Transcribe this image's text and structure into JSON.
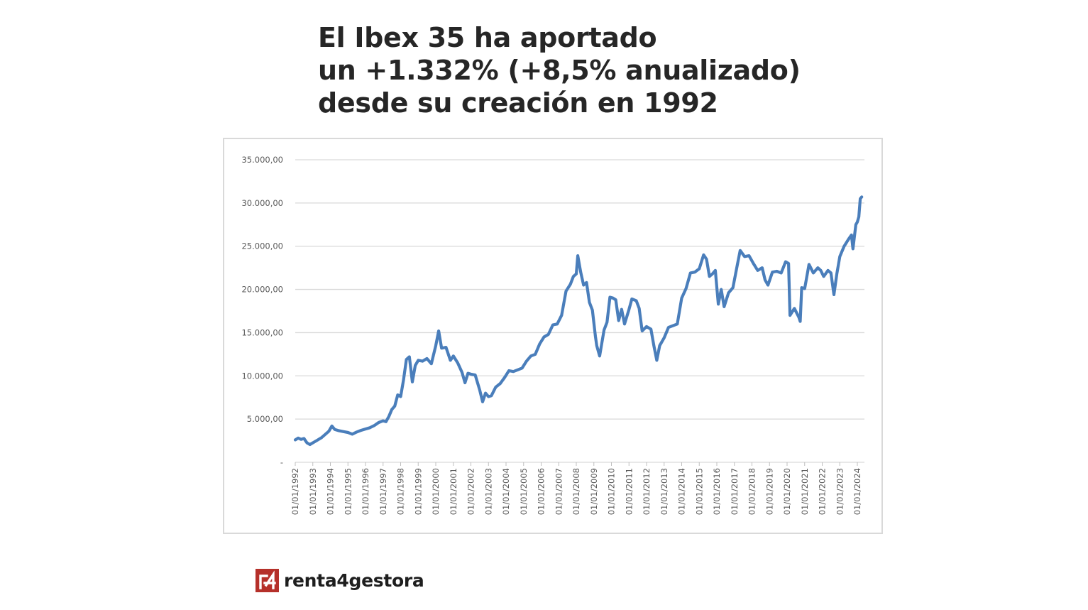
{
  "title": {
    "line1": "El Ibex 35 ha aportado",
    "line2": "un +1.332% (+8,5% anualizado)",
    "line3": "desde su creación en 1992"
  },
  "brand": {
    "name": "renta4gestora",
    "logo_text": "r4",
    "logo_color": "#b5302a"
  },
  "chart_data": {
    "type": "line",
    "title": "",
    "xlabel": "",
    "ylabel": "",
    "ylim": [
      0,
      35000
    ],
    "y_ticks": [
      0,
      5000,
      10000,
      15000,
      20000,
      25000,
      30000,
      35000
    ],
    "y_tick_labels": [
      "-",
      "5.000,00",
      "10.000,00",
      "15.000,00",
      "20.000,00",
      "25.000,00",
      "30.000,00",
      "35.000,00"
    ],
    "x_tick_labels": [
      "01/01/1992",
      "01/01/1993",
      "01/01/1994",
      "01/01/1995",
      "01/01/1996",
      "01/01/1997",
      "01/01/1998",
      "01/01/1999",
      "01/01/2000",
      "01/01/2001",
      "01/01/2002",
      "01/01/2003",
      "01/01/2004",
      "01/01/2005",
      "01/01/2006",
      "01/01/2007",
      "01/01/2008",
      "01/01/2009",
      "01/01/2010",
      "01/01/2011",
      "01/01/2012",
      "01/01/2013",
      "01/01/2014",
      "01/01/2015",
      "01/01/2016",
      "01/01/2017",
      "01/01/2018",
      "01/01/2019",
      "01/01/2020",
      "01/01/2021",
      "01/01/2022",
      "01/01/2023",
      "01/01/2024"
    ],
    "grid": true,
    "legend": "none",
    "series_color": "#4a7ebb",
    "series": [
      {
        "values": [
          [
            "1992-01-01",
            2600
          ],
          [
            "1992-03-01",
            2800
          ],
          [
            "1992-05-01",
            2650
          ],
          [
            "1992-07-01",
            2750
          ],
          [
            "1992-09-01",
            2250
          ],
          [
            "1992-11-01",
            2050
          ],
          [
            "1993-01-01",
            2250
          ],
          [
            "1993-04-01",
            2550
          ],
          [
            "1993-07-01",
            2850
          ],
          [
            "1993-10-01",
            3300
          ],
          [
            "1993-12-01",
            3600
          ],
          [
            "1994-02-01",
            4200
          ],
          [
            "1994-04-01",
            3800
          ],
          [
            "1994-07-01",
            3650
          ],
          [
            "1994-10-01",
            3550
          ],
          [
            "1995-01-01",
            3450
          ],
          [
            "1995-04-01",
            3250
          ],
          [
            "1995-07-01",
            3500
          ],
          [
            "1995-10-01",
            3700
          ],
          [
            "1996-01-01",
            3850
          ],
          [
            "1996-04-01",
            4000
          ],
          [
            "1996-07-01",
            4250
          ],
          [
            "1996-10-01",
            4600
          ],
          [
            "1997-01-01",
            4800
          ],
          [
            "1997-03-01",
            4700
          ],
          [
            "1997-05-01",
            5300
          ],
          [
            "1997-07-01",
            6100
          ],
          [
            "1997-09-01",
            6500
          ],
          [
            "1997-11-01",
            7800
          ],
          [
            "1998-01-01",
            7600
          ],
          [
            "1998-03-01",
            9500
          ],
          [
            "1998-05-01",
            11900
          ],
          [
            "1998-07-01",
            12200
          ],
          [
            "1998-09-01",
            9300
          ],
          [
            "1998-11-01",
            11200
          ],
          [
            "1999-01-01",
            11800
          ],
          [
            "1999-04-01",
            11700
          ],
          [
            "1999-07-01",
            12000
          ],
          [
            "1999-10-01",
            11400
          ],
          [
            "2000-01-01",
            13500
          ],
          [
            "2000-03-01",
            15200
          ],
          [
            "2000-05-01",
            13200
          ],
          [
            "2000-08-01",
            13300
          ],
          [
            "2000-11-01",
            11800
          ],
          [
            "2001-01-01",
            12300
          ],
          [
            "2001-04-01",
            11500
          ],
          [
            "2001-07-01",
            10400
          ],
          [
            "2001-09-01",
            9200
          ],
          [
            "2001-11-01",
            10300
          ],
          [
            "2002-01-01",
            10200
          ],
          [
            "2002-04-01",
            10100
          ],
          [
            "2002-07-01",
            8400
          ],
          [
            "2002-09-01",
            7000
          ],
          [
            "2002-11-01",
            8000
          ],
          [
            "2003-01-01",
            7600
          ],
          [
            "2003-03-01",
            7700
          ],
          [
            "2003-06-01",
            8700
          ],
          [
            "2003-09-01",
            9100
          ],
          [
            "2003-12-01",
            9800
          ],
          [
            "2004-03-01",
            10600
          ],
          [
            "2004-06-01",
            10500
          ],
          [
            "2004-09-01",
            10700
          ],
          [
            "2004-12-01",
            10900
          ],
          [
            "2005-03-01",
            11700
          ],
          [
            "2005-06-01",
            12300
          ],
          [
            "2005-09-01",
            12500
          ],
          [
            "2005-12-01",
            13700
          ],
          [
            "2006-03-01",
            14500
          ],
          [
            "2006-06-01",
            14800
          ],
          [
            "2006-09-01",
            15900
          ],
          [
            "2006-12-01",
            16000
          ],
          [
            "2007-03-01",
            17000
          ],
          [
            "2007-06-01",
            19800
          ],
          [
            "2007-09-01",
            20600
          ],
          [
            "2007-11-01",
            21500
          ],
          [
            "2008-01-01",
            21800
          ],
          [
            "2008-02-01",
            23900
          ],
          [
            "2008-04-01",
            22000
          ],
          [
            "2008-06-01",
            20500
          ],
          [
            "2008-08-01",
            20800
          ],
          [
            "2008-10-01",
            18500
          ],
          [
            "2008-12-01",
            17600
          ],
          [
            "2009-02-01",
            14600
          ],
          [
            "2009-03-01",
            13500
          ],
          [
            "2009-05-01",
            12300
          ],
          [
            "2009-08-01",
            15300
          ],
          [
            "2009-10-01",
            16200
          ],
          [
            "2009-12-01",
            19100
          ],
          [
            "2010-02-01",
            19000
          ],
          [
            "2010-04-01",
            18800
          ],
          [
            "2010-06-01",
            16400
          ],
          [
            "2010-08-01",
            17700
          ],
          [
            "2010-10-01",
            16000
          ],
          [
            "2011-01-01",
            17700
          ],
          [
            "2011-03-01",
            18900
          ],
          [
            "2011-06-01",
            18700
          ],
          [
            "2011-08-01",
            17800
          ],
          [
            "2011-10-01",
            15200
          ],
          [
            "2012-01-01",
            15700
          ],
          [
            "2012-04-01",
            15400
          ],
          [
            "2012-06-01",
            13500
          ],
          [
            "2012-08-01",
            11800
          ],
          [
            "2012-10-01",
            13500
          ],
          [
            "2013-01-01",
            14400
          ],
          [
            "2013-04-01",
            15600
          ],
          [
            "2013-07-01",
            15800
          ],
          [
            "2013-10-01",
            16000
          ],
          [
            "2014-01-01",
            19000
          ],
          [
            "2014-04-01",
            20100
          ],
          [
            "2014-07-01",
            21900
          ],
          [
            "2014-10-01",
            22000
          ],
          [
            "2015-01-01",
            22400
          ],
          [
            "2015-04-01",
            24000
          ],
          [
            "2015-06-01",
            23500
          ],
          [
            "2015-08-01",
            21500
          ],
          [
            "2015-10-01",
            21800
          ],
          [
            "2015-12-01",
            22200
          ],
          [
            "2016-02-01",
            18300
          ],
          [
            "2016-04-01",
            20000
          ],
          [
            "2016-06-01",
            18000
          ],
          [
            "2016-09-01",
            19600
          ],
          [
            "2016-12-01",
            20200
          ],
          [
            "2017-03-01",
            22800
          ],
          [
            "2017-05-01",
            24500
          ],
          [
            "2017-08-01",
            23800
          ],
          [
            "2017-11-01",
            23900
          ],
          [
            "2018-02-01",
            23000
          ],
          [
            "2018-05-01",
            22200
          ],
          [
            "2018-08-01",
            22500
          ],
          [
            "2018-10-01",
            21100
          ],
          [
            "2018-12-01",
            20500
          ],
          [
            "2019-03-01",
            22000
          ],
          [
            "2019-06-01",
            22100
          ],
          [
            "2019-09-01",
            21900
          ],
          [
            "2019-12-01",
            23200
          ],
          [
            "2020-02-01",
            23000
          ],
          [
            "2020-03-01",
            17000
          ],
          [
            "2020-06-01",
            17800
          ],
          [
            "2020-09-01",
            16800
          ],
          [
            "2020-10-01",
            16300
          ],
          [
            "2020-11-01",
            20200
          ],
          [
            "2021-01-01",
            20100
          ],
          [
            "2021-04-01",
            22900
          ],
          [
            "2021-07-01",
            21900
          ],
          [
            "2021-10-01",
            22500
          ],
          [
            "2021-12-01",
            22200
          ],
          [
            "2022-02-01",
            21500
          ],
          [
            "2022-05-01",
            22200
          ],
          [
            "2022-07-01",
            21900
          ],
          [
            "2022-09-01",
            19400
          ],
          [
            "2022-11-01",
            21800
          ],
          [
            "2023-01-01",
            23800
          ],
          [
            "2023-04-01",
            25000
          ],
          [
            "2023-07-01",
            25800
          ],
          [
            "2023-09-01",
            26300
          ],
          [
            "2023-10-01",
            24700
          ],
          [
            "2023-12-01",
            27500
          ],
          [
            "2024-01-01",
            27800
          ],
          [
            "2024-02-01",
            28400
          ],
          [
            "2024-03-01",
            30500
          ],
          [
            "2024-04-01",
            30700
          ]
        ]
      }
    ]
  }
}
